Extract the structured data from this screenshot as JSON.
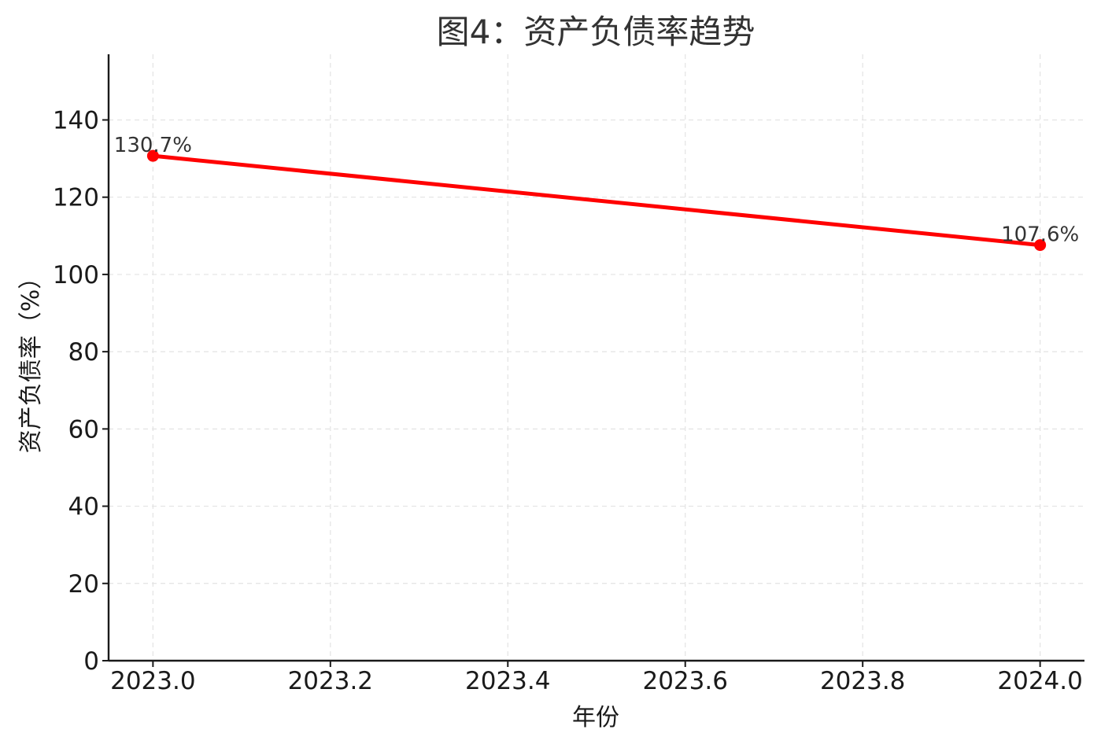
{
  "chart_data": {
    "type": "line",
    "title": "图4：资产负债率趋势",
    "xlabel": "年份",
    "ylabel": "资产负债率（%）",
    "x": [
      2023.0,
      2024.0
    ],
    "series": [
      {
        "values": [
          130.7,
          107.6
        ],
        "color": "#ff0000",
        "marker": "circle"
      }
    ],
    "data_labels": [
      "130.7%",
      "107.6%"
    ],
    "x_ticks": [
      2023.0,
      2023.2,
      2023.4,
      2023.6,
      2023.8,
      2024.0
    ],
    "x_tick_labels": [
      "2023.0",
      "2023.2",
      "2023.4",
      "2023.6",
      "2023.8",
      "2024.0"
    ],
    "y_ticks": [
      0,
      20,
      40,
      60,
      80,
      100,
      120,
      140
    ],
    "y_tick_labels": [
      "0",
      "20",
      "40",
      "60",
      "80",
      "100",
      "120",
      "140"
    ],
    "xlim": [
      2022.95,
      2024.05
    ],
    "ylim": [
      0,
      157
    ],
    "grid": true
  }
}
